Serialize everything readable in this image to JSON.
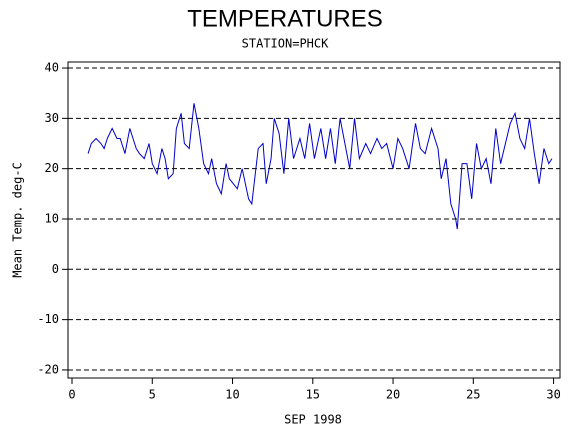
{
  "chart_data": {
    "type": "line",
    "title": "TEMPERATURES",
    "subtitle": "STATION=PHCK",
    "x_label": "SEP 1998",
    "y_label": "Mean Temp. deg-C",
    "xlim": [
      -0.25,
      30.4
    ],
    "ylim": [
      -21.6,
      41.2
    ],
    "xticks": [
      0,
      5,
      10,
      15,
      20,
      25,
      30
    ],
    "yticks": [
      -20,
      -10,
      0,
      10,
      20,
      30,
      40
    ],
    "grid": true,
    "x": [
      1,
      1.2,
      1.5,
      1.8,
      2,
      2.2,
      2.5,
      2.8,
      3,
      3.3,
      3.6,
      3.8,
      4,
      4.2,
      4.5,
      4.8,
      5,
      5.3,
      5.6,
      5.8,
      6,
      6.3,
      6.5,
      6.8,
      7,
      7.3,
      7.6,
      7.9,
      8.2,
      8.5,
      8.7,
      9,
      9.3,
      9.6,
      9.8,
      10.3,
      10.6,
      11,
      11.2,
      11.6,
      11.9,
      12.1,
      12.4,
      12.6,
      12.9,
      13.2,
      13.5,
      13.8,
      14.2,
      14.5,
      14.8,
      15.1,
      15.5,
      15.8,
      16.1,
      16.4,
      16.7,
      17,
      17.3,
      17.6,
      17.9,
      18.3,
      18.6,
      19,
      19.3,
      19.6,
      20,
      20.3,
      20.6,
      21,
      21.4,
      21.7,
      22,
      22.4,
      22.8,
      23,
      23.3,
      23.6,
      23.9,
      24,
      24.3,
      24.6,
      24.9,
      25.2,
      25.5,
      25.8,
      26.1,
      26.4,
      26.7,
      27,
      27.3,
      27.6,
      27.9,
      28.2,
      28.5,
      28.8,
      29.1,
      29.4,
      29.7,
      29.9
    ],
    "series": [
      {
        "name": "Mean Temp.",
        "color": "#0000cc",
        "values": [
          23,
          25,
          26,
          25,
          24,
          26,
          28,
          26,
          26,
          23,
          28,
          26,
          24,
          23,
          22,
          25,
          21,
          19,
          24,
          22,
          18,
          19,
          28,
          31,
          25,
          24,
          33,
          28,
          21,
          19,
          22,
          17,
          15,
          21,
          18,
          16,
          20,
          14,
          13,
          24,
          25,
          17,
          22,
          30,
          27,
          19,
          30,
          22,
          26,
          22,
          29,
          22,
          28,
          22,
          28,
          21,
          30,
          25,
          20,
          30,
          22,
          25,
          23,
          26,
          24,
          25,
          20,
          26,
          24,
          20,
          29,
          24,
          23,
          28,
          24,
          18,
          22,
          13,
          10,
          8,
          21,
          21,
          14,
          25,
          20,
          22,
          17,
          28,
          21,
          25,
          29,
          31,
          26,
          24,
          30,
          23,
          17,
          24,
          21,
          22
        ]
      }
    ]
  }
}
